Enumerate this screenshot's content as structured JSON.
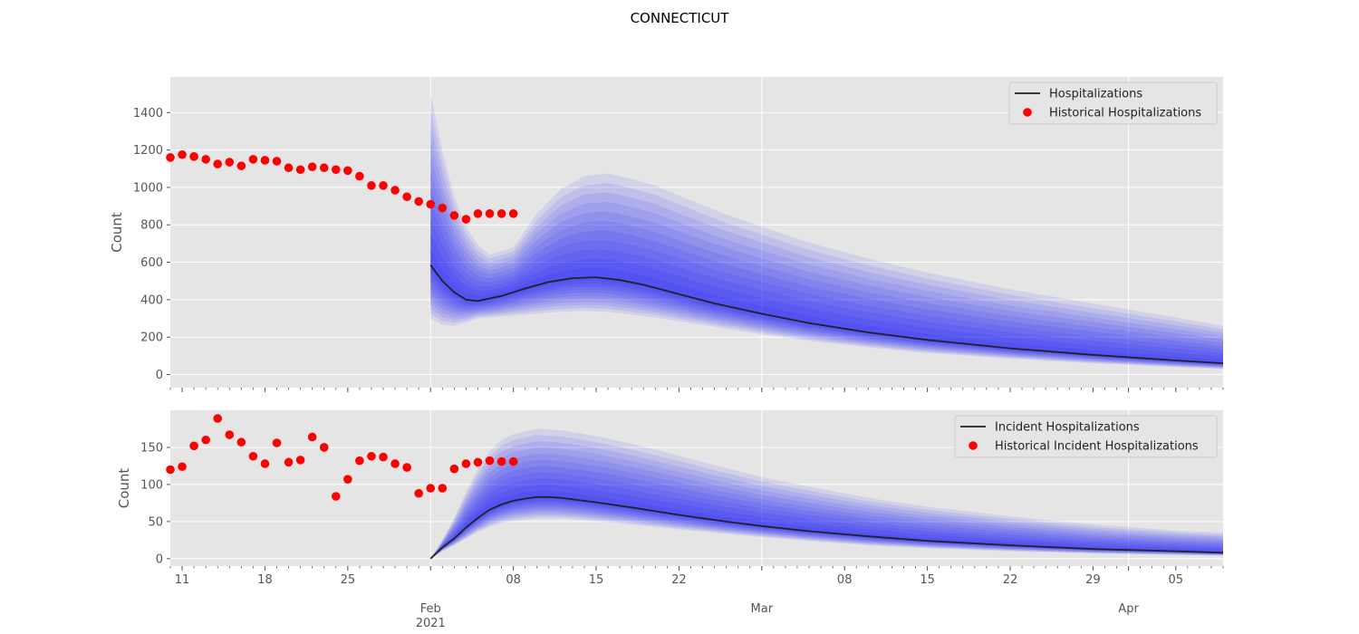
{
  "title": "CONNECTICUT",
  "colors": {
    "axes_bg": "#e5e5e5",
    "grid": "#ffffff",
    "band": "#0000ff",
    "median": "#222222",
    "historical": "#ff0000",
    "tick_text": "#555555"
  },
  "chart_data": [
    {
      "type": "line",
      "panel": "top",
      "title": "",
      "ylabel": "Count",
      "xlabel": "",
      "ylim": [
        -70,
        1590
      ],
      "yticks": [
        0,
        200,
        400,
        600,
        800,
        1000,
        1200,
        1400
      ],
      "xlim": [
        "2021-01-10",
        "2021-04-09"
      ],
      "grid": true,
      "legend_position": "top-right",
      "legend": [
        "Hospitalizations",
        "Historical Hospitalizations"
      ],
      "series": [
        {
          "name": "Hospitalizations",
          "kind": "line",
          "x": [
            "2021-02-01",
            "2021-02-02",
            "2021-02-03",
            "2021-02-04",
            "2021-02-05",
            "2021-02-07",
            "2021-02-09",
            "2021-02-11",
            "2021-02-13",
            "2021-02-15",
            "2021-02-17",
            "2021-02-19",
            "2021-02-22",
            "2021-02-25",
            "2021-03-01",
            "2021-03-05",
            "2021-03-10",
            "2021-03-15",
            "2021-03-22",
            "2021-03-29",
            "2021-04-05",
            "2021-04-09"
          ],
          "y": [
            585,
            500,
            440,
            400,
            393,
            420,
            460,
            495,
            515,
            520,
            505,
            480,
            430,
            380,
            325,
            275,
            225,
            185,
            140,
            105,
            75,
            60
          ]
        },
        {
          "name": "Historical Hospitalizations",
          "kind": "scatter",
          "x": [
            "2021-01-10",
            "2021-01-11",
            "2021-01-12",
            "2021-01-13",
            "2021-01-14",
            "2021-01-15",
            "2021-01-16",
            "2021-01-17",
            "2021-01-18",
            "2021-01-19",
            "2021-01-20",
            "2021-01-21",
            "2021-01-22",
            "2021-01-23",
            "2021-01-24",
            "2021-01-25",
            "2021-01-26",
            "2021-01-27",
            "2021-01-28",
            "2021-01-29",
            "2021-01-30",
            "2021-01-31",
            "2021-02-01",
            "2021-02-02",
            "2021-02-03",
            "2021-02-04",
            "2021-02-05",
            "2021-02-06",
            "2021-02-07",
            "2021-02-08"
          ],
          "y": [
            1160,
            1175,
            1165,
            1150,
            1125,
            1135,
            1115,
            1150,
            1145,
            1140,
            1105,
            1095,
            1110,
            1105,
            1095,
            1090,
            1060,
            1010,
            1010,
            985,
            950,
            925,
            910,
            890,
            850,
            830,
            860,
            860,
            860,
            860
          ]
        }
      ],
      "bands": {
        "x": [
          "2021-02-01",
          "2021-02-02",
          "2021-02-03",
          "2021-02-04",
          "2021-02-05",
          "2021-02-06",
          "2021-02-08",
          "2021-02-10",
          "2021-02-12",
          "2021-02-14",
          "2021-02-16",
          "2021-02-18",
          "2021-02-20",
          "2021-02-23",
          "2021-02-26",
          "2021-03-01",
          "2021-03-05",
          "2021-03-10",
          "2021-03-15",
          "2021-03-22",
          "2021-03-29",
          "2021-04-05",
          "2021-04-09"
        ],
        "lower": [
          300,
          265,
          260,
          280,
          300,
          305,
          315,
          325,
          335,
          340,
          335,
          320,
          305,
          275,
          245,
          215,
          180,
          145,
          115,
          85,
          60,
          40,
          30
        ],
        "upper": [
          1500,
          1200,
          950,
          790,
          690,
          640,
          680,
          860,
          990,
          1060,
          1075,
          1045,
          1010,
          930,
          855,
          790,
          705,
          620,
          545,
          455,
          380,
          305,
          260
        ]
      }
    },
    {
      "type": "line",
      "panel": "bottom",
      "title": "",
      "ylabel": "Count",
      "xlabel": "",
      "ylim": [
        -10,
        200
      ],
      "yticks": [
        0,
        50,
        100,
        150
      ],
      "xlim": [
        "2021-01-10",
        "2021-04-09"
      ],
      "grid": true,
      "legend_position": "top-right",
      "legend": [
        "Incident Hospitalizations",
        "Historical Incident Hospitalizations"
      ],
      "series": [
        {
          "name": "Incident Hospitalizations",
          "kind": "line",
          "x": [
            "2021-02-01",
            "2021-02-02",
            "2021-02-03",
            "2021-02-04",
            "2021-02-05",
            "2021-02-06",
            "2021-02-07",
            "2021-02-08",
            "2021-02-09",
            "2021-02-10",
            "2021-02-11",
            "2021-02-12",
            "2021-02-13",
            "2021-02-15",
            "2021-02-18",
            "2021-02-22",
            "2021-02-26",
            "2021-03-01",
            "2021-03-05",
            "2021-03-10",
            "2021-03-15",
            "2021-03-22",
            "2021-03-29",
            "2021-04-05",
            "2021-04-09"
          ],
          "y": [
            0,
            15,
            27,
            42,
            55,
            66,
            73,
            78,
            81,
            83,
            83,
            82,
            80,
            76,
            69,
            59,
            50,
            44,
            37,
            30,
            24,
            18,
            13,
            10,
            8
          ]
        },
        {
          "name": "Historical Incident Hospitalizations",
          "kind": "scatter",
          "x": [
            "2021-01-10",
            "2021-01-11",
            "2021-01-12",
            "2021-01-13",
            "2021-01-14",
            "2021-01-15",
            "2021-01-16",
            "2021-01-17",
            "2021-01-18",
            "2021-01-19",
            "2021-01-20",
            "2021-01-21",
            "2021-01-22",
            "2021-01-23",
            "2021-01-24",
            "2021-01-25",
            "2021-01-26",
            "2021-01-27",
            "2021-01-28",
            "2021-01-29",
            "2021-01-30",
            "2021-01-31",
            "2021-02-01",
            "2021-02-02",
            "2021-02-03",
            "2021-02-04",
            "2021-02-05",
            "2021-02-06",
            "2021-02-07",
            "2021-02-08"
          ],
          "y": [
            120,
            124,
            152,
            160,
            189,
            167,
            157,
            138,
            128,
            156,
            130,
            133,
            164,
            150,
            84,
            107,
            132,
            138,
            137,
            128,
            123,
            88,
            95,
            95,
            121,
            128,
            130,
            132,
            131,
            131
          ]
        }
      ],
      "bands": {
        "x": [
          "2021-02-01",
          "2021-02-02",
          "2021-02-03",
          "2021-02-04",
          "2021-02-05",
          "2021-02-06",
          "2021-02-07",
          "2021-02-08",
          "2021-02-10",
          "2021-02-12",
          "2021-02-14",
          "2021-02-16",
          "2021-02-18",
          "2021-02-21",
          "2021-02-25",
          "2021-03-01",
          "2021-03-05",
          "2021-03-10",
          "2021-03-15",
          "2021-03-22",
          "2021-03-29",
          "2021-04-05",
          "2021-04-09"
        ],
        "lower": [
          0,
          10,
          18,
          27,
          36,
          43,
          48,
          51,
          54,
          54,
          52,
          49,
          46,
          41,
          35,
          29,
          24,
          18,
          14,
          10,
          7,
          5,
          4
        ],
        "upper": [
          0,
          25,
          55,
          90,
          120,
          145,
          160,
          168,
          175,
          173,
          168,
          162,
          155,
          143,
          126,
          110,
          97,
          82,
          70,
          57,
          46,
          38,
          35
        ]
      }
    }
  ],
  "x_axis": {
    "minor_ticks": [
      "11",
      "18",
      "25",
      "08",
      "15",
      "22",
      "08",
      "15",
      "22",
      "29",
      "05"
    ],
    "major_ticks": [
      "Feb",
      "Mar",
      "Apr"
    ],
    "year_label": "2021"
  }
}
